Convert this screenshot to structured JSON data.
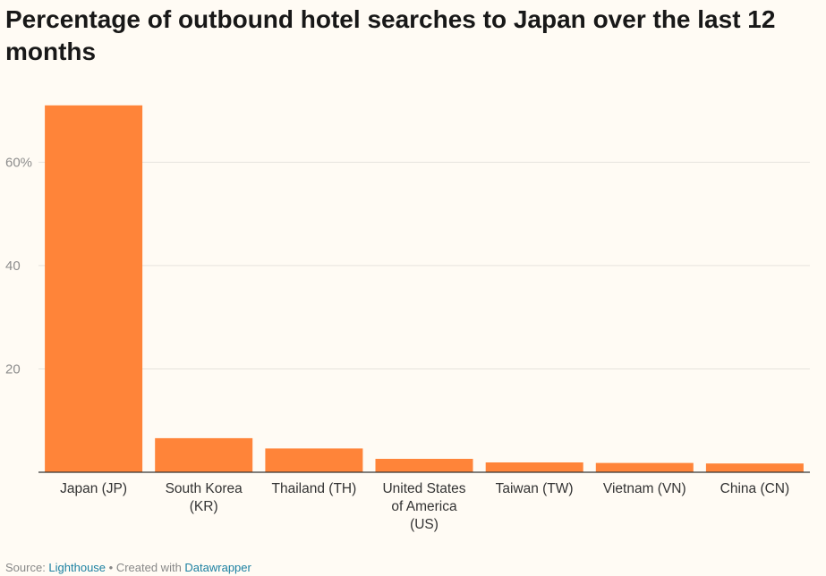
{
  "title": "Percentage of outbound hotel searches to Japan over the last 12 months",
  "footer": {
    "source_prefix": "Source: ",
    "source_link": "Lighthouse",
    "separator": " • Created with ",
    "tool_link": "Datawrapper"
  },
  "colors": {
    "bar": "#ff8439",
    "background": "#fffbf4"
  },
  "chart_data": {
    "type": "bar",
    "title": "Percentage of outbound hotel searches to Japan over the last 12 months",
    "xlabel": "",
    "ylabel": "",
    "ylim": [
      0,
      72
    ],
    "yticks": [
      20,
      40,
      60
    ],
    "ytick_labels": [
      "20",
      "40",
      "60%"
    ],
    "grid": true,
    "categories": [
      "Japan (JP)",
      "South Korea (KR)",
      "Thailand (TH)",
      "United States of America (US)",
      "Taiwan (TW)",
      "Vietnam (VN)",
      "China (CN)"
    ],
    "category_label_lines": [
      [
        "Japan (JP)"
      ],
      [
        "South Korea",
        "(KR)"
      ],
      [
        "Thailand (TH)"
      ],
      [
        "United States",
        "of America",
        "(US)"
      ],
      [
        "Taiwan (TW)"
      ],
      [
        "Vietnam (VN)"
      ],
      [
        "China (CN)"
      ]
    ],
    "values": [
      71.0,
      6.6,
      4.6,
      2.6,
      1.9,
      1.8,
      1.7
    ]
  }
}
